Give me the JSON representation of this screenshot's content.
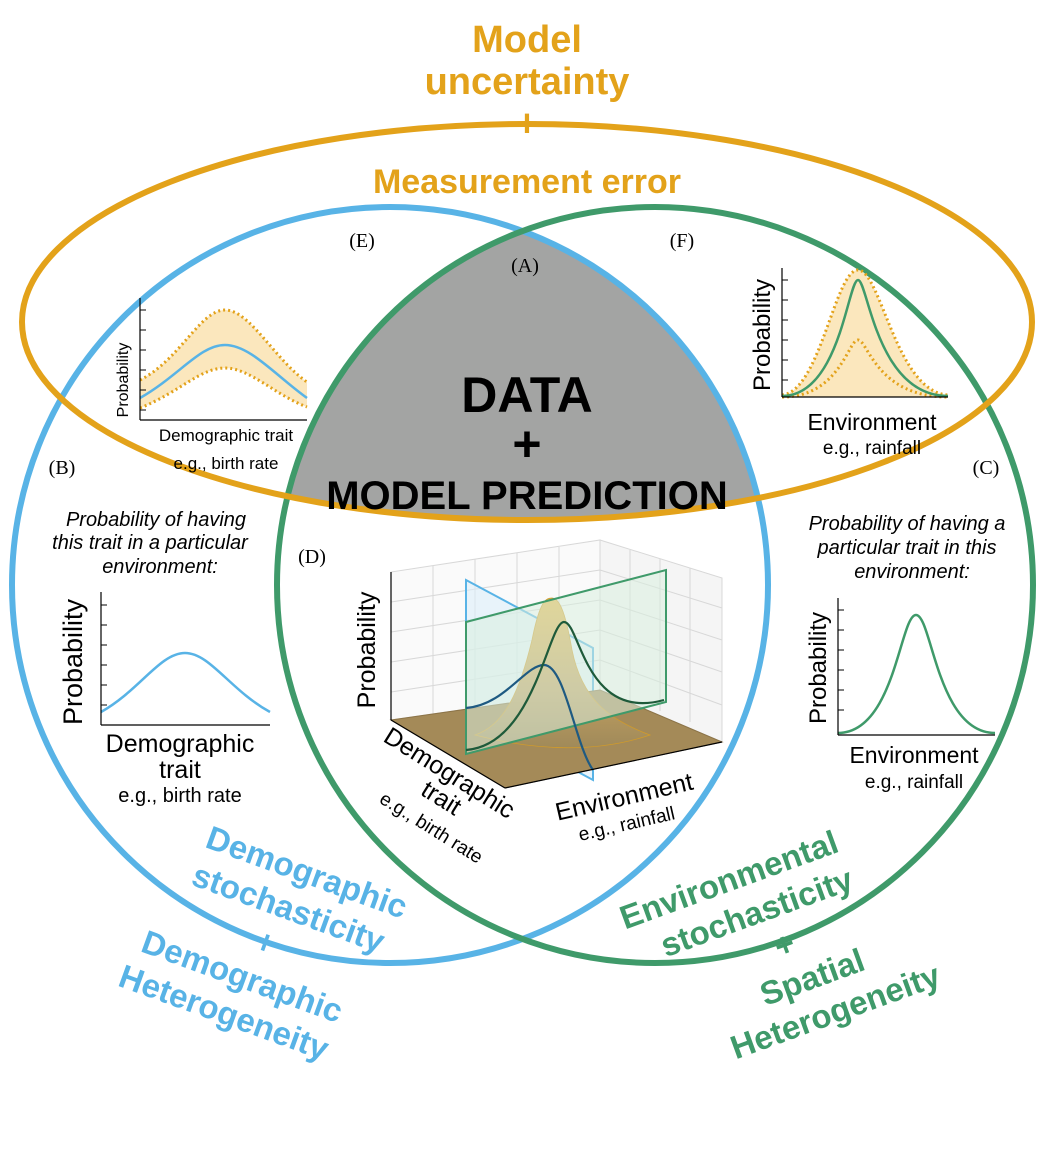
{
  "colors": {
    "orange": "#e3a21a",
    "blue": "#58b3e6",
    "green": "#3f9a6a",
    "center_gray": "#a3a4a3",
    "band_fill": "#fbe7bd",
    "surface": "#b49a64"
  },
  "top_label": {
    "line1": "Model",
    "line2": "uncertainty",
    "plus": "+",
    "line3": "Measurement error"
  },
  "center": {
    "line1": "DATA",
    "plus": "+",
    "line2": "MODEL PREDICTION"
  },
  "region_labels": {
    "a": "(A)",
    "b": "(B)",
    "c": "(C)",
    "d": "(D)",
    "e": "(E)",
    "f": "(F)"
  },
  "panel_b": {
    "caption_line1": "Probability of having",
    "caption_line2": "this trait in a particular",
    "caption_line3": "environment:",
    "ylabel": "Probability",
    "xlabel_line1": "Demographic",
    "xlabel_line2": "trait",
    "xlabel_line3": "e.g., birth rate"
  },
  "panel_c": {
    "caption_line1": "Probability of having a",
    "caption_line2": "particular trait in this",
    "caption_line3": "environment:",
    "ylabel": "Probability",
    "xlabel_line1": "Environment",
    "xlabel_line2": "e.g., rainfall"
  },
  "panel_d": {
    "ylabel": "Probability",
    "axis1_line1": "Demographic",
    "axis1_line2": "trait",
    "axis1_line3": "e.g., birth rate",
    "axis2_line1": "Environment",
    "axis2_line2": "e.g., rainfall"
  },
  "panel_e": {
    "ylabel": "Probability",
    "xlabel_line1": "Demographic trait",
    "xlabel_line2": "e.g., birth rate"
  },
  "panel_f": {
    "ylabel": "Probability",
    "xlabel_line1": "Environment",
    "xlabel_line2": "e.g., rainfall"
  },
  "bottom_left": {
    "line1": "Demographic",
    "line2": "stochasticity",
    "plus": "+",
    "line3": "Demographic",
    "line4": "Heterogeneity"
  },
  "bottom_right": {
    "line1": "Environmental",
    "line2": "stochasticity",
    "plus": "+",
    "line3": "Spatial",
    "line4": "Heterogeneity"
  }
}
